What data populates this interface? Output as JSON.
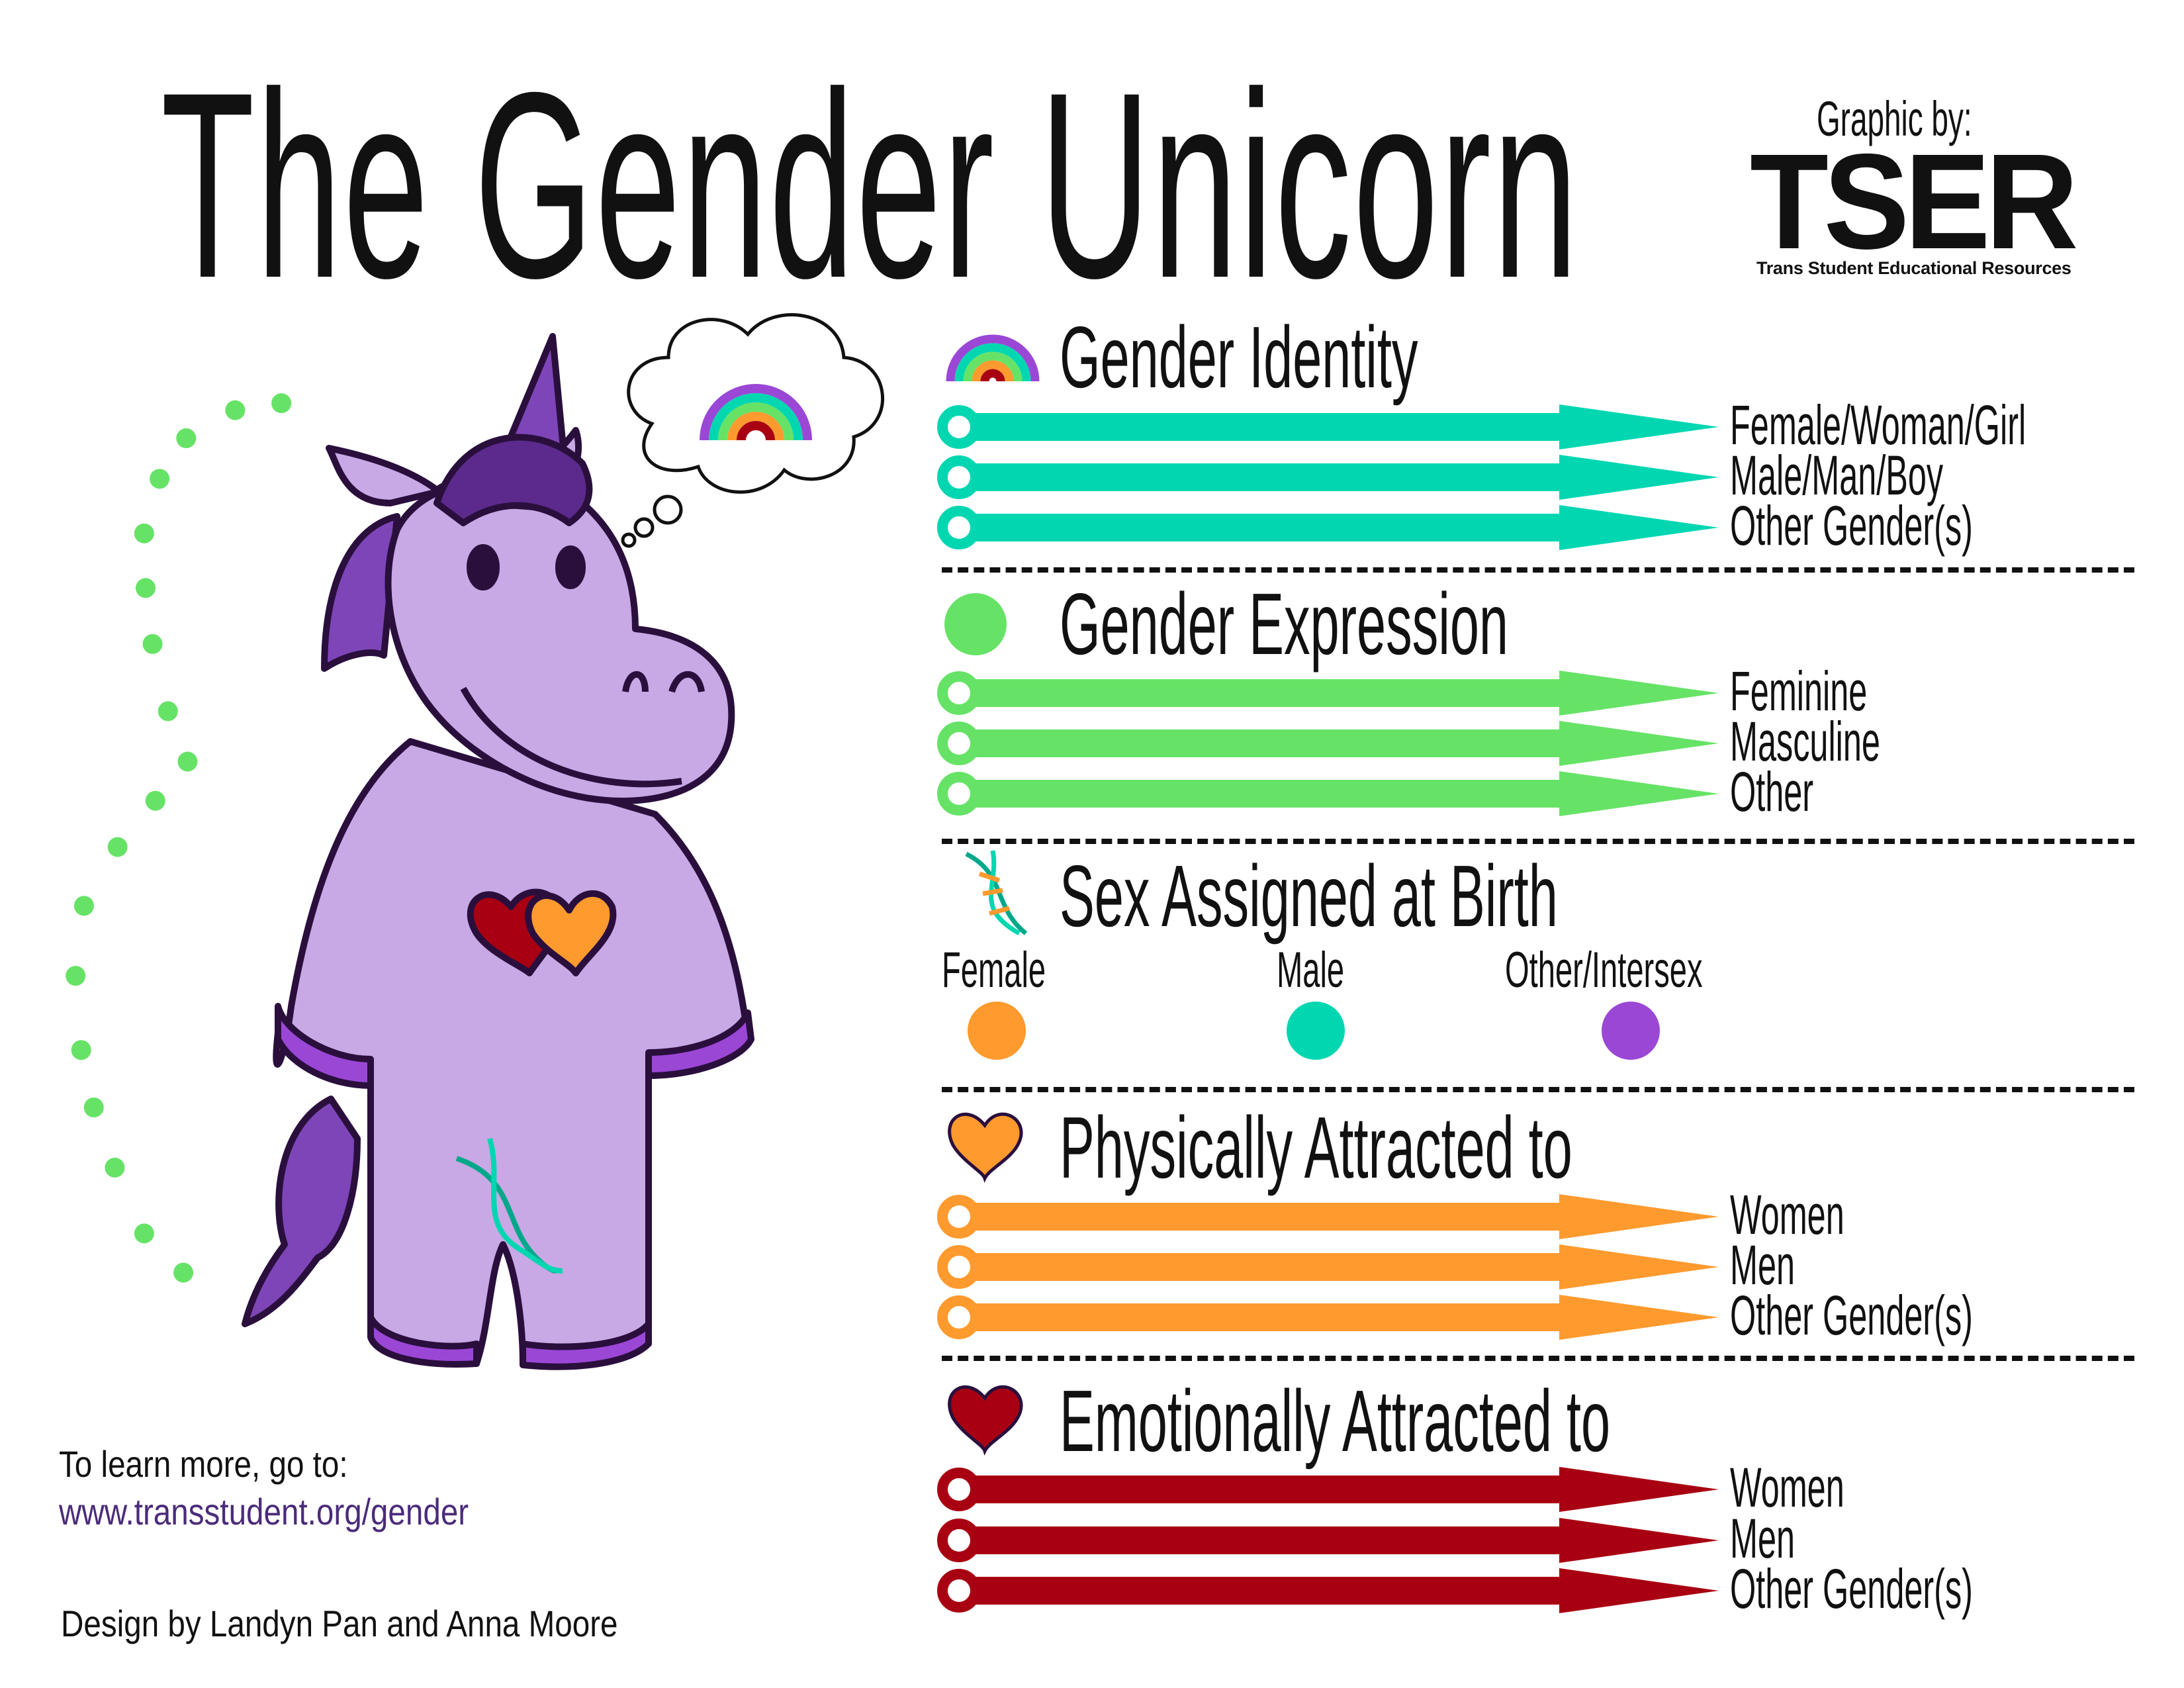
{
  "title": "The Gender Unicorn",
  "credit": {
    "graphic_by": "Graphic by:",
    "logo_text": "TSER",
    "logo_subtitle": "Trans Student Educational Resources"
  },
  "colors": {
    "teal": "#00D7B1",
    "green": "#66E366",
    "orange": "#FF9A2E",
    "red": "#A80012",
    "purple": "#9B47D6",
    "unicorn_body": "#C9A8E6",
    "unicorn_outline": "#2A0F3D",
    "link": "#4B2B7A"
  },
  "sections": {
    "gender_identity": {
      "heading": "Gender Identity",
      "icon": "rainbow-icon",
      "color": "#00D7B1",
      "options": [
        "Female/Woman/Girl",
        "Male/Man/Boy",
        "Other Gender(s)"
      ]
    },
    "gender_expression": {
      "heading": "Gender Expression",
      "icon": "green-circle-icon",
      "color": "#66E366",
      "options": [
        "Feminine",
        "Masculine",
        "Other"
      ]
    },
    "sex_assigned": {
      "heading": "Sex Assigned at Birth",
      "icon": "dna-icon",
      "options": [
        {
          "label": "Female",
          "color": "#FF9A2E"
        },
        {
          "label": "Male",
          "color": "#00D7B1"
        },
        {
          "label": "Other/Intersex",
          "color": "#9B47D6"
        }
      ]
    },
    "physically_attracted": {
      "heading": "Physically Attracted to",
      "icon": "orange-heart-icon",
      "color": "#FF9A2E",
      "options": [
        "Women",
        "Men",
        "Other Gender(s)"
      ]
    },
    "emotionally_attracted": {
      "heading": "Emotionally Attracted to",
      "icon": "red-heart-icon",
      "color": "#A80012",
      "options": [
        "Women",
        "Men",
        "Other Gender(s)"
      ]
    }
  },
  "footer": {
    "learn_more": "To learn more, go to:",
    "url": "www.transstudent.org/gender",
    "design_credit": "Design by Landyn Pan and Anna Moore"
  }
}
